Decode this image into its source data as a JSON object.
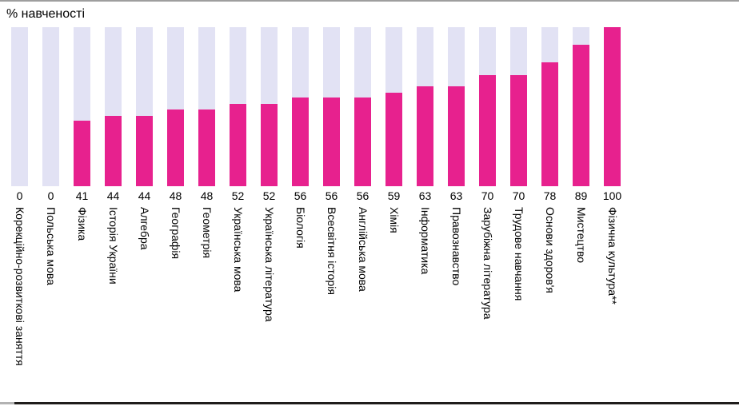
{
  "chart_data": {
    "type": "bar",
    "variant": "stacked-to-100-background-bars",
    "title": "% навченості",
    "categories": [
      "Корекційно-розвиткові заняття",
      "Польська мова",
      "Фізика",
      "Історія України",
      "Алгебра",
      "Географія",
      "Геометрія",
      "Українська мова",
      "Українська література",
      "Біологія",
      "Всесвітня історія",
      "Англійська мова",
      "Хімія",
      "Інформатика",
      "Правознавство",
      "Зарубіжна література",
      "Трудове навчання",
      "Основи здоров'я",
      "Мистецтво",
      "Фізична культура**"
    ],
    "values": [
      0,
      0,
      41,
      44,
      44,
      48,
      48,
      52,
      52,
      56,
      56,
      56,
      59,
      63,
      63,
      70,
      70,
      78,
      89,
      100
    ],
    "ylim": [
      0,
      100
    ],
    "grid": false,
    "legend": "none",
    "value_labels_shown": true,
    "bar_color": "#e7218e",
    "background_bar_color": "#e2e2f4",
    "top_border_color": "#9e9e9e",
    "bottom_line_color": "#1f1d1b",
    "bottom_line_left_color": "#b2b2b2"
  }
}
